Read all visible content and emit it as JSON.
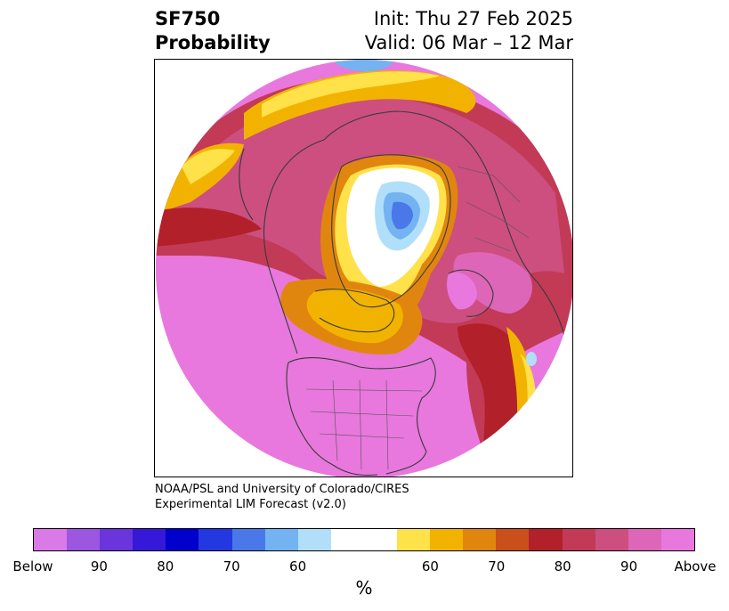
{
  "title": {
    "left_line1": "SF750",
    "left_line2": "Probability",
    "right_line1": "Init: Thu 27 Feb 2025",
    "right_line2": "Valid: 06 Mar – 12 Mar"
  },
  "credit": {
    "line1": "NOAA/PSL and University of Colorado/CIRES",
    "line2": "Experimental LIM Forecast (v2.0)"
  },
  "colorbar": {
    "unit_label": "%",
    "colors": [
      "#d97ae6",
      "#9b57e0",
      "#6b35dc",
      "#3518d8",
      "#0000cc",
      "#2338e0",
      "#4a78e8",
      "#74b3f2",
      "#b1dffa",
      "#ffffff",
      "#ffe14a",
      "#f2b300",
      "#e0860e",
      "#c9501a",
      "#b2202a",
      "#c23a56",
      "#cc4f80",
      "#de66b8",
      "#e878dd"
    ],
    "tick_labels": [
      "Below",
      "90",
      "80",
      "70",
      "60",
      "60",
      "70",
      "80",
      "90",
      "Above"
    ]
  }
}
